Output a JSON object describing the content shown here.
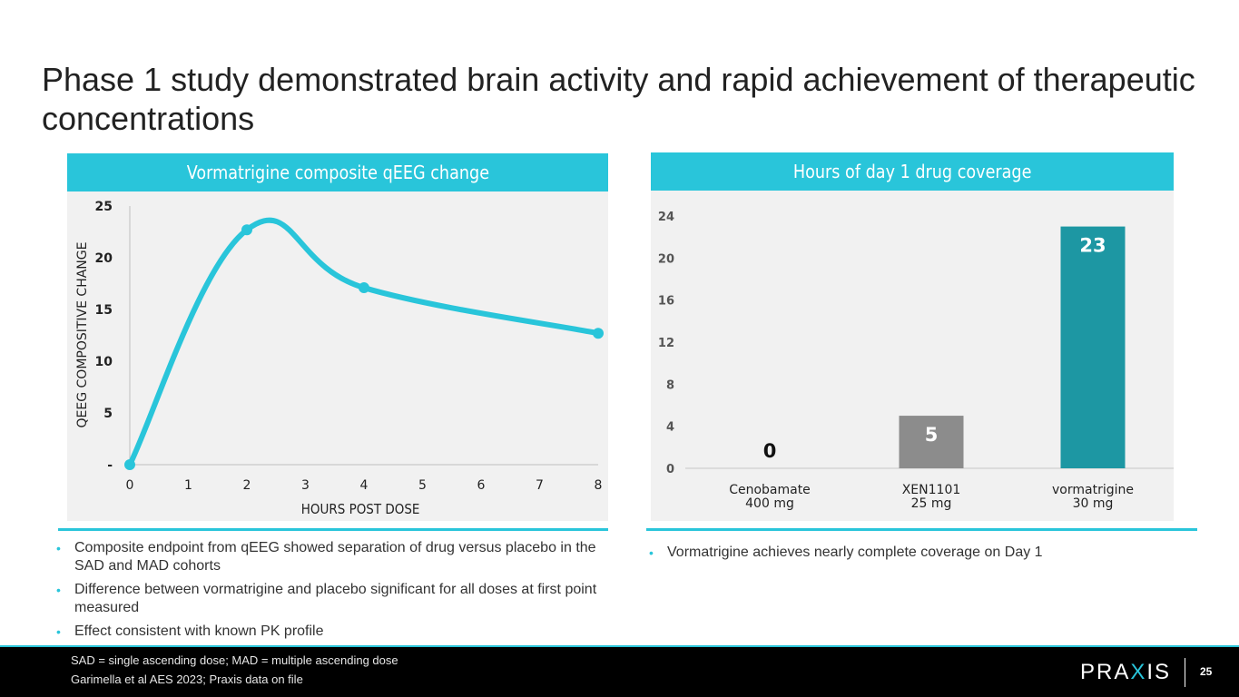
{
  "slide": {
    "title": "Phase 1 study demonstrated brain activity and rapid achievement of therapeutic concentrations",
    "page_number": "25"
  },
  "left_panel": {
    "header": "Vormatrigine composite qEEG change",
    "bullets": [
      "Composite endpoint from qEEG showed separation of drug versus placebo in the SAD and MAD cohorts",
      "Difference between vormatrigine and placebo significant for all doses at first point measured",
      "Effect consistent with known PK profile"
    ]
  },
  "right_panel": {
    "header": "Hours of day 1 drug coverage",
    "bullets": [
      "Vormatrigine achieves nearly complete coverage on Day 1"
    ]
  },
  "footer": {
    "footnote_1": "SAD = single ascending dose; MAD = multiple ascending dose",
    "footnote_2": "Garimella et al AES 2023; Praxis data on file",
    "logo_text_a": "PRA",
    "logo_text_x": "X",
    "logo_text_b": "IS"
  },
  "colors": {
    "accent": "#29c5da",
    "bar_gray": "#8c8c8c",
    "bar_teal": "#1d97a3",
    "panel_bg": "#f1f1f1"
  },
  "chart_data": [
    {
      "type": "line",
      "xlabel": "HOURS POST DOSE",
      "ylabel": "QEEG COMPOSITIVE CHANGE",
      "x_ticks": [
        "0",
        "1",
        "2",
        "3",
        "4",
        "5",
        "6",
        "7",
        "8"
      ],
      "y_ticks": [
        "-",
        "5",
        "10",
        "15",
        "20",
        "25"
      ],
      "xlim": [
        0,
        8
      ],
      "ylim": [
        0,
        25
      ],
      "series": [
        {
          "points": [
            {
              "x": 0,
              "y": 0
            },
            {
              "x": 2,
              "y": 22.7
            },
            {
              "x": 4,
              "y": 17.1
            },
            {
              "x": 8,
              "y": 12.7
            }
          ]
        }
      ],
      "grid": false,
      "color": "#29c5da"
    },
    {
      "type": "bar",
      "y_ticks": [
        "0",
        "4",
        "8",
        "12",
        "16",
        "20",
        "24"
      ],
      "ylim": [
        0,
        24
      ],
      "categories": [
        {
          "name": "Cenobamate",
          "dose": "400 mg"
        },
        {
          "name": "XEN1101",
          "dose": "25 mg"
        },
        {
          "name": "vormatrigine",
          "dose": "30 mg"
        }
      ],
      "values": [
        0,
        5,
        23
      ],
      "data_labels": [
        "0",
        "5",
        "23"
      ],
      "grid": false
    }
  ]
}
